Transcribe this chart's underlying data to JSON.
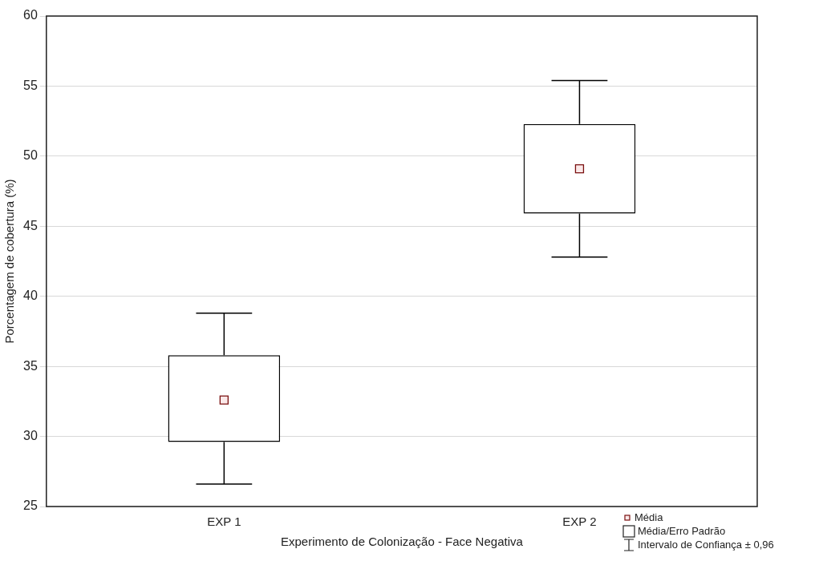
{
  "chart_data": {
    "type": "box",
    "xlabel": "Experimento de Colonização - Face Negativa",
    "ylabel": "Porcentagem de cobertura (%)",
    "categories": [
      "EXP 1",
      "EXP 2"
    ],
    "series": [
      {
        "color": "#000000",
        "boxes": [
          {
            "low": 26.6,
            "q1": 29.6,
            "median": 32.6,
            "q3": 35.8,
            "high": 38.8
          },
          {
            "low": 42.8,
            "q1": 45.9,
            "median": 49.1,
            "q3": 52.3,
            "high": 55.4
          }
        ]
      }
    ],
    "ylim": [
      25,
      60
    ],
    "yticks": [
      25,
      30,
      35,
      40,
      45,
      50,
      55,
      60
    ],
    "grid": "y",
    "marker": "square",
    "annotations": [
      "Média",
      "Média/Erro Padrão",
      "Intervalo de Confiança ± 0,96"
    ]
  }
}
